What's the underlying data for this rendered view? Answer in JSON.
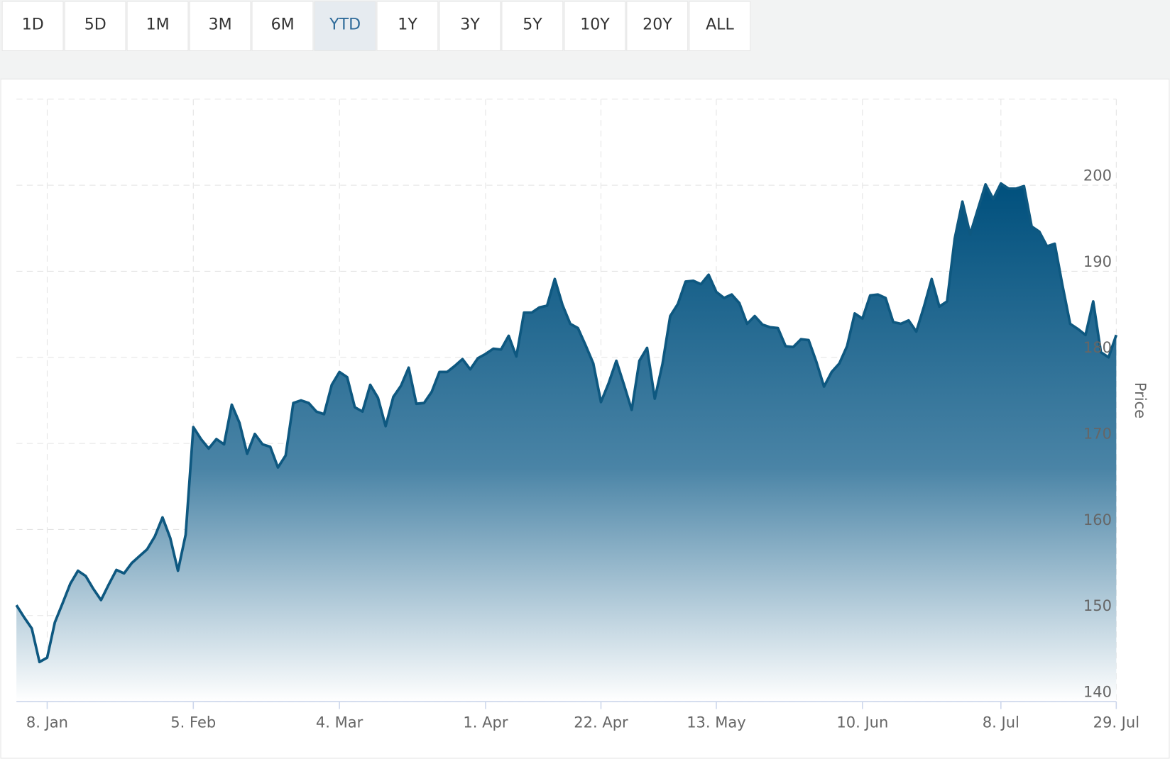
{
  "range_selector": {
    "buttons": [
      "1D",
      "5D",
      "1M",
      "3M",
      "6M",
      "YTD",
      "1Y",
      "3Y",
      "5Y",
      "10Y",
      "20Y",
      "ALL"
    ],
    "selected": 5
  },
  "chart_data": {
    "type": "area",
    "ylabel": "Price",
    "color": "#0e5880",
    "categories": [
      null,
      null,
      null,
      null,
      "8. Jan",
      null,
      null,
      null,
      null,
      null,
      null,
      null,
      null,
      null,
      null,
      null,
      null,
      null,
      null,
      null,
      null,
      null,
      null,
      "5. Feb",
      null,
      null,
      null,
      null,
      null,
      null,
      null,
      null,
      null,
      null,
      null,
      null,
      null,
      null,
      null,
      null,
      null,
      null,
      "4. Mar",
      null,
      null,
      null,
      null,
      null,
      null,
      null,
      null,
      null,
      null,
      null,
      null,
      null,
      null,
      null,
      null,
      null,
      null,
      "1. Apr",
      null,
      null,
      null,
      null,
      null,
      null,
      null,
      null,
      null,
      null,
      null,
      null,
      null,
      null,
      "22. Apr",
      null,
      null,
      null,
      null,
      null,
      null,
      null,
      null,
      null,
      null,
      null,
      null,
      null,
      null,
      "13. May",
      null,
      null,
      null,
      null,
      null,
      null,
      null,
      null,
      null,
      null,
      null,
      null,
      null,
      null,
      null,
      null,
      null,
      null,
      "10. Jun",
      null,
      null,
      null,
      null,
      null,
      null,
      null,
      null,
      null,
      null,
      null,
      null,
      null,
      null,
      null,
      null,
      null,
      "8. Jul",
      null,
      null,
      null,
      null,
      null,
      null,
      null,
      null,
      null,
      null,
      null,
      null,
      null,
      null,
      "29. Jul"
    ],
    "values": [
      151.2,
      149.8,
      148.5,
      144.6,
      145.1,
      149.2,
      151.4,
      153.7,
      155.2,
      154.6,
      153.1,
      151.8,
      153.6,
      155.3,
      154.9,
      156.1,
      156.9,
      157.7,
      159.2,
      161.4,
      159.0,
      155.2,
      159.4,
      171.9,
      170.5,
      169.4,
      170.5,
      169.9,
      174.5,
      172.4,
      168.8,
      171.1,
      169.9,
      169.6,
      167.2,
      168.6,
      174.7,
      175.0,
      174.7,
      173.7,
      173.4,
      176.8,
      178.3,
      177.7,
      174.2,
      173.7,
      176.8,
      175.3,
      172.0,
      175.4,
      176.7,
      178.8,
      174.6,
      174.7,
      176.0,
      178.3,
      178.3,
      179.0,
      179.8,
      178.6,
      179.9,
      180.4,
      181.0,
      180.9,
      182.5,
      180.1,
      185.2,
      185.2,
      185.8,
      186.0,
      189.1,
      186.1,
      183.9,
      183.4,
      181.4,
      179.3,
      174.8,
      177.0,
      179.6,
      176.8,
      173.9,
      179.6,
      181.1,
      175.2,
      179.2,
      184.8,
      186.2,
      188.8,
      188.9,
      188.5,
      189.6,
      187.6,
      186.9,
      187.3,
      186.3,
      183.9,
      184.8,
      183.8,
      183.5,
      183.4,
      181.3,
      181.2,
      182.1,
      182.0,
      179.5,
      176.6,
      178.3,
      179.3,
      181.3,
      185.1,
      184.5,
      187.2,
      187.3,
      186.9,
      184.1,
      183.9,
      184.3,
      183.0,
      185.9,
      189.1,
      185.9,
      186.5,
      193.8,
      198.1,
      194.3,
      197.2,
      200.1,
      198.4,
      200.2,
      199.6,
      199.6,
      199.9,
      195.2,
      194.6,
      192.9,
      193.2,
      188.4,
      183.9,
      183.3,
      182.6,
      186.5,
      180.6,
      180.0,
      182.6
    ],
    "ylim": [
      140,
      210
    ],
    "yticks": [
      140,
      150,
      160,
      170,
      180,
      190,
      200
    ],
    "grid": true
  }
}
